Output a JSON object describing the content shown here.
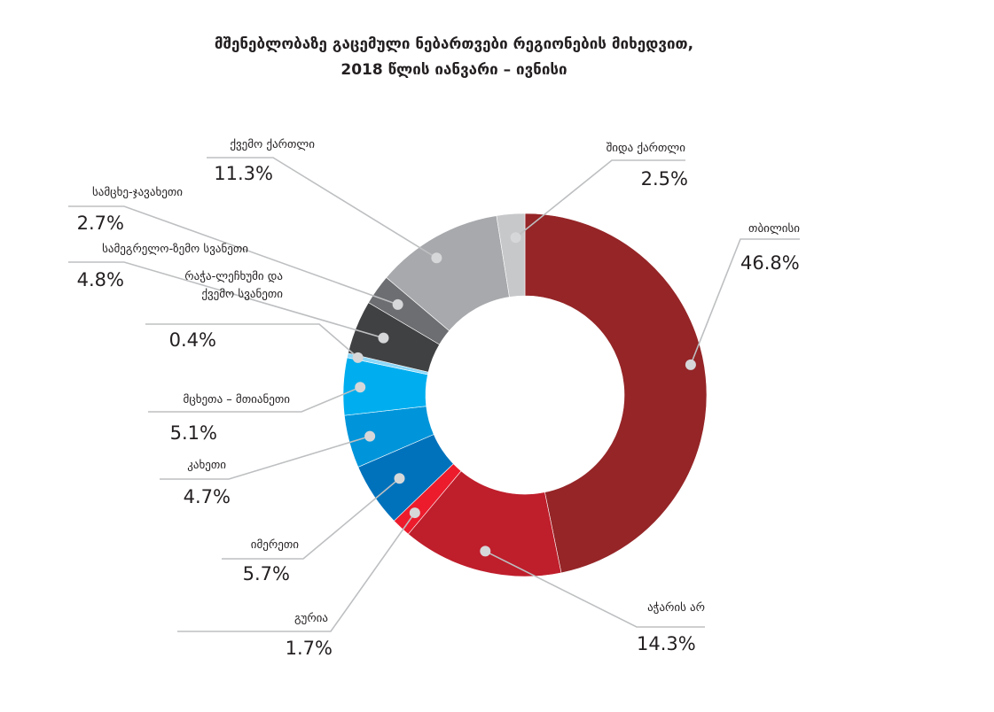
{
  "chart_data": {
    "type": "pie",
    "title_line1": "მშენებლობაზე გაცემული ნებართვები რეგიონების მიხედვით,",
    "title_line2": "2018 წლის იანვარი – ივნისი",
    "unit": "%",
    "slices": [
      {
        "name": "თბილისი",
        "value": 46.8,
        "label": "46.8%",
        "color": "#952527"
      },
      {
        "name": "აჭარის არ",
        "value": 14.3,
        "label": "14.3%",
        "color": "#bf1e2b"
      },
      {
        "name": "გურია",
        "value": 1.7,
        "label": "1.7%",
        "color": "#ec1c2d"
      },
      {
        "name": "იმერეთი",
        "value": 5.7,
        "label": "5.7%",
        "color": "#0072bc"
      },
      {
        "name": "კახეთი",
        "value": 4.7,
        "label": "4.7%",
        "color": "#0095da"
      },
      {
        "name": "მცხეთა – მთიანეთი",
        "value": 5.1,
        "label": "5.1%",
        "color": "#00aeef"
      },
      {
        "name": "რაჭა-ლეჩხუმი და ქვემო სვანეთი",
        "name_lines": [
          "რაჭა-ლეჩხუმი და",
          "ქვემო სვანეთი"
        ],
        "value": 0.4,
        "label": "0.4%",
        "color": "#8ed8f8"
      },
      {
        "name": "სამეგრელო-ზემო სვანეთი",
        "value": 4.8,
        "label": "4.8%",
        "color": "#404143"
      },
      {
        "name": "სამცხე-ჯავახეთი",
        "value": 2.7,
        "label": "2.7%",
        "color": "#6d6e71"
      },
      {
        "name": "ქვემო ქართლი",
        "value": 11.3,
        "label": "11.3%",
        "color": "#a7a9ac"
      },
      {
        "name": "შიდა ქართლი",
        "value": 2.5,
        "label": "2.5%",
        "color": "#c7c8ca"
      }
    ]
  }
}
